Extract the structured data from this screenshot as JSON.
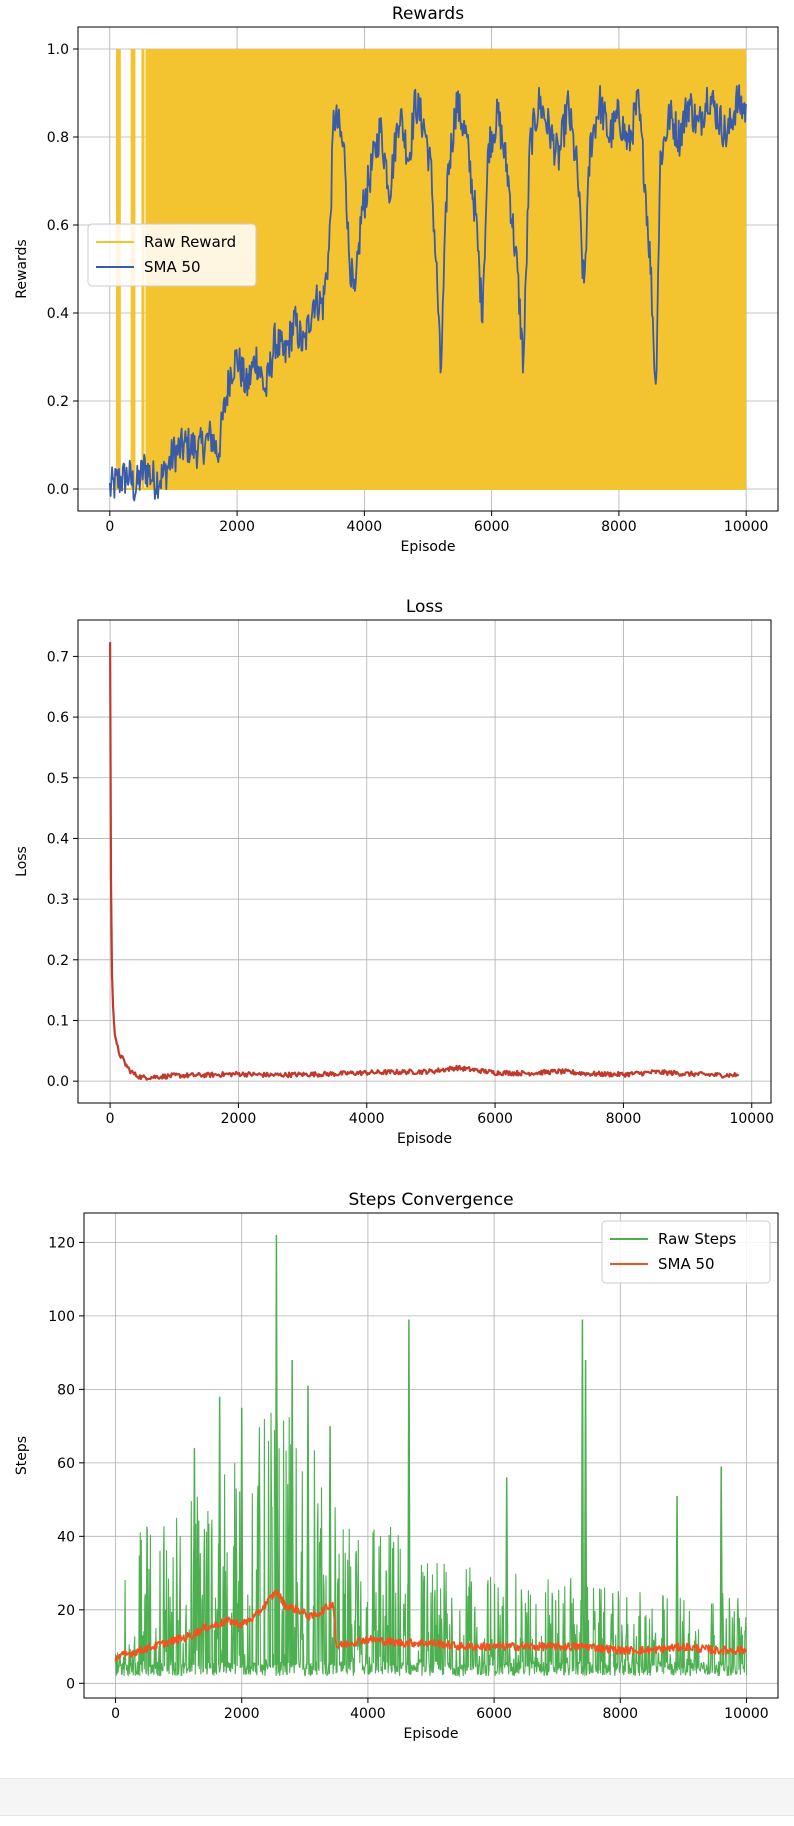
{
  "chart_data": [
    {
      "type": "line",
      "title": "Rewards",
      "xlabel": "Episode",
      "ylabel": "Rewards",
      "xlim": [
        -500,
        10500
      ],
      "ylim": [
        -0.05,
        1.05
      ],
      "xticks": [
        0,
        2000,
        4000,
        6000,
        8000,
        10000
      ],
      "xtick_labels": [
        "0",
        "2000",
        "4000",
        "6000",
        "8000",
        "10000"
      ],
      "yticks": [
        0.0,
        0.2,
        0.4,
        0.6,
        0.8,
        1.0
      ],
      "ytick_labels": [
        "0.0",
        "0.2",
        "0.4",
        "0.6",
        "0.8",
        "1.0"
      ],
      "grid": true,
      "legend_position": "center-left",
      "series": [
        {
          "name": "Raw Reward",
          "color": "#f4c430",
          "kind": "binary-band",
          "x_range": [
            0,
            10000
          ],
          "values_set": [
            0,
            1
          ],
          "early_spikes_x": [
            120,
            150,
            350,
            380,
            520
          ]
        },
        {
          "name": "SMA 50",
          "color": "#3a5ba7",
          "points": [
            [
              0,
              0.0
            ],
            [
              150,
              0.02
            ],
            [
              300,
              0.03
            ],
            [
              400,
              0.0
            ],
            [
              550,
              0.05
            ],
            [
              700,
              0.02
            ],
            [
              850,
              0.03
            ],
            [
              1000,
              0.08
            ],
            [
              1200,
              0.1
            ],
            [
              1400,
              0.09
            ],
            [
              1600,
              0.12
            ],
            [
              1700,
              0.08
            ],
            [
              1800,
              0.18
            ],
            [
              1900,
              0.27
            ],
            [
              2000,
              0.3
            ],
            [
              2150,
              0.23
            ],
            [
              2300,
              0.3
            ],
            [
              2450,
              0.22
            ],
            [
              2600,
              0.34
            ],
            [
              2750,
              0.3
            ],
            [
              2900,
              0.38
            ],
            [
              3050,
              0.32
            ],
            [
              3200,
              0.43
            ],
            [
              3350,
              0.42
            ],
            [
              3450,
              0.55
            ],
            [
              3520,
              0.85
            ],
            [
              3600,
              0.82
            ],
            [
              3700,
              0.75
            ],
            [
              3750,
              0.55
            ],
            [
              3850,
              0.42
            ],
            [
              3950,
              0.62
            ],
            [
              4100,
              0.72
            ],
            [
              4250,
              0.82
            ],
            [
              4400,
              0.68
            ],
            [
              4550,
              0.86
            ],
            [
              4700,
              0.75
            ],
            [
              4800,
              0.88
            ],
            [
              4950,
              0.82
            ],
            [
              5050,
              0.72
            ],
            [
              5150,
              0.45
            ],
            [
              5200,
              0.25
            ],
            [
              5300,
              0.7
            ],
            [
              5450,
              0.88
            ],
            [
              5600,
              0.8
            ],
            [
              5750,
              0.62
            ],
            [
              5850,
              0.4
            ],
            [
              5950,
              0.78
            ],
            [
              6100,
              0.85
            ],
            [
              6250,
              0.72
            ],
            [
              6400,
              0.5
            ],
            [
              6500,
              0.28
            ],
            [
              6600,
              0.78
            ],
            [
              6750,
              0.88
            ],
            [
              6900,
              0.82
            ],
            [
              7050,
              0.75
            ],
            [
              7200,
              0.87
            ],
            [
              7350,
              0.72
            ],
            [
              7450,
              0.45
            ],
            [
              7550,
              0.78
            ],
            [
              7700,
              0.88
            ],
            [
              7850,
              0.8
            ],
            [
              8000,
              0.85
            ],
            [
              8150,
              0.78
            ],
            [
              8300,
              0.88
            ],
            [
              8400,
              0.72
            ],
            [
              8500,
              0.5
            ],
            [
              8580,
              0.22
            ],
            [
              8650,
              0.75
            ],
            [
              8800,
              0.85
            ],
            [
              8950,
              0.8
            ],
            [
              9100,
              0.88
            ],
            [
              9250,
              0.82
            ],
            [
              9400,
              0.9
            ],
            [
              9550,
              0.85
            ],
            [
              9700,
              0.8
            ],
            [
              9850,
              0.88
            ],
            [
              10000,
              0.86
            ]
          ]
        }
      ]
    },
    {
      "type": "line",
      "title": "Loss",
      "xlabel": "Episode",
      "ylabel": "Loss",
      "xlim": [
        -500,
        10300
      ],
      "ylim": [
        -0.036,
        0.76
      ],
      "xticks": [
        0,
        2000,
        4000,
        6000,
        8000,
        10000
      ],
      "xtick_labels": [
        "0",
        "2000",
        "4000",
        "6000",
        "8000",
        "10000"
      ],
      "yticks": [
        0.0,
        0.1,
        0.2,
        0.3,
        0.4,
        0.5,
        0.6,
        0.7
      ],
      "ytick_labels": [
        "0.0",
        "0.1",
        "0.2",
        "0.3",
        "0.4",
        "0.5",
        "0.6",
        "0.7"
      ],
      "grid": true,
      "series": [
        {
          "name": "",
          "color": "#c0392b",
          "points": [
            [
              0,
              0.72
            ],
            [
              10,
              0.45
            ],
            [
              20,
              0.22
            ],
            [
              40,
              0.14
            ],
            [
              60,
              0.1
            ],
            [
              80,
              0.07
            ],
            [
              100,
              0.06
            ],
            [
              150,
              0.045
            ],
            [
              200,
              0.035
            ],
            [
              300,
              0.018
            ],
            [
              400,
              0.01
            ],
            [
              500,
              0.006
            ],
            [
              700,
              0.007
            ],
            [
              1000,
              0.009
            ],
            [
              1500,
              0.01
            ],
            [
              2000,
              0.012
            ],
            [
              2500,
              0.01
            ],
            [
              3000,
              0.011
            ],
            [
              3500,
              0.012
            ],
            [
              4000,
              0.014
            ],
            [
              4500,
              0.015
            ],
            [
              5000,
              0.016
            ],
            [
              5400,
              0.022
            ],
            [
              5700,
              0.018
            ],
            [
              6000,
              0.014
            ],
            [
              6500,
              0.013
            ],
            [
              7000,
              0.016
            ],
            [
              7500,
              0.012
            ],
            [
              8000,
              0.011
            ],
            [
              8500,
              0.015
            ],
            [
              9000,
              0.012
            ],
            [
              9500,
              0.01
            ],
            [
              9800,
              0.01
            ]
          ]
        }
      ]
    },
    {
      "type": "line",
      "title": "Steps Convergence",
      "xlabel": "Episode",
      "ylabel": "Steps",
      "xlim": [
        -500,
        10500
      ],
      "ylim": [
        -4,
        128
      ],
      "xticks": [
        0,
        2000,
        4000,
        6000,
        8000,
        10000
      ],
      "xtick_labels": [
        "0",
        "2000",
        "4000",
        "6000",
        "8000",
        "10000"
      ],
      "yticks": [
        0,
        20,
        40,
        60,
        80,
        100,
        120
      ],
      "ytick_labels": [
        "0",
        "20",
        "40",
        "60",
        "80",
        "100",
        "120"
      ],
      "grid": true,
      "legend_position": "top-right",
      "series": [
        {
          "name": "Raw Steps",
          "color": "#4caf50",
          "kind": "noisy",
          "envelope": [
            [
              0,
              2,
              30
            ],
            [
              500,
              2,
              45
            ],
            [
              1000,
              2,
              50
            ],
            [
              1500,
              2,
              60
            ],
            [
              2000,
              2,
              65
            ],
            [
              2500,
              2,
              75
            ],
            [
              3000,
              2,
              70
            ],
            [
              3450,
              2,
              65
            ],
            [
              3500,
              2,
              40
            ],
            [
              4000,
              2,
              50
            ],
            [
              5000,
              2,
              35
            ],
            [
              6000,
              2,
              30
            ],
            [
              7000,
              2,
              30
            ],
            [
              8000,
              2,
              25
            ],
            [
              9000,
              2,
              25
            ],
            [
              10000,
              2,
              25
            ]
          ],
          "spikes": [
            [
              1250,
              64
            ],
            [
              1650,
              78
            ],
            [
              2000,
              75
            ],
            [
              2550,
              122
            ],
            [
              2800,
              88
            ],
            [
              3050,
              81
            ],
            [
              3400,
              70
            ],
            [
              4650,
              99
            ],
            [
              6200,
              56
            ],
            [
              7400,
              99
            ],
            [
              7450,
              88
            ],
            [
              8900,
              51
            ],
            [
              9600,
              59
            ]
          ]
        },
        {
          "name": "SMA 50",
          "color": "#f4511e",
          "points": [
            [
              0,
              7
            ],
            [
              200,
              8
            ],
            [
              400,
              9
            ],
            [
              600,
              10
            ],
            [
              800,
              11
            ],
            [
              1000,
              12
            ],
            [
              1200,
              13
            ],
            [
              1400,
              15
            ],
            [
              1600,
              16
            ],
            [
              1800,
              17
            ],
            [
              2000,
              16
            ],
            [
              2200,
              18
            ],
            [
              2400,
              22
            ],
            [
              2550,
              25
            ],
            [
              2700,
              21
            ],
            [
              2900,
              20
            ],
            [
              3100,
              18
            ],
            [
              3300,
              20
            ],
            [
              3450,
              22
            ],
            [
              3500,
              10
            ],
            [
              3700,
              11
            ],
            [
              4000,
              12
            ],
            [
              4500,
              11
            ],
            [
              5000,
              11
            ],
            [
              5500,
              10
            ],
            [
              6000,
              10
            ],
            [
              6500,
              10
            ],
            [
              7000,
              10
            ],
            [
              7500,
              10
            ],
            [
              8000,
              9
            ],
            [
              8500,
              9
            ],
            [
              9000,
              10
            ],
            [
              9500,
              9
            ],
            [
              10000,
              9
            ]
          ]
        }
      ]
    }
  ]
}
